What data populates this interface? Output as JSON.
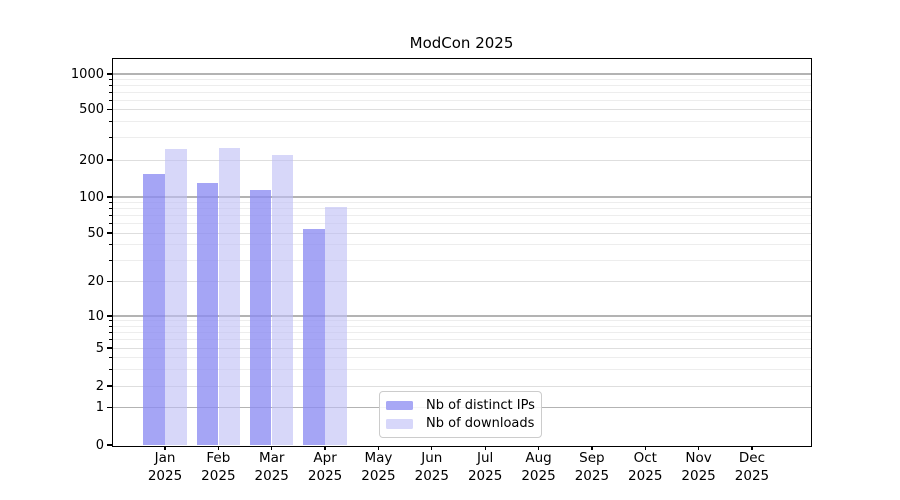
{
  "chart_data": {
    "type": "bar",
    "title": "ModCon 2025",
    "yscale": "symlog",
    "ylim": [
      0,
      1320
    ],
    "grid": true,
    "legend_position": "inside-bottom-center",
    "categories": [
      "Jan 2025",
      "Feb 2025",
      "Mar 2025",
      "Apr 2025",
      "May 2025",
      "Jun 2025",
      "Jul 2025",
      "Aug 2025",
      "Sep 2025",
      "Oct 2025",
      "Nov 2025",
      "Dec 2025"
    ],
    "y_ticks": [
      1000,
      500,
      200,
      100,
      50,
      20,
      10,
      5,
      2,
      1,
      0
    ],
    "series": [
      {
        "name": "Nb of distinct IPs",
        "color": "#a8a8f5",
        "bar_fill": "rgba(140,140,242,0.78)",
        "values": [
          153,
          131,
          115,
          54,
          null,
          null,
          null,
          null,
          null,
          null,
          null,
          null
        ]
      },
      {
        "name": "Nb of downloads",
        "color": "#d7d7fa",
        "bar_fill": "rgba(190,190,245,0.62)",
        "values": [
          243,
          248,
          220,
          82,
          null,
          null,
          null,
          null,
          null,
          null,
          null,
          null
        ]
      }
    ],
    "grid_colors": {
      "major": "#b3b3b3",
      "labeled_minor": "#dedede",
      "minor": "#ededed"
    }
  }
}
